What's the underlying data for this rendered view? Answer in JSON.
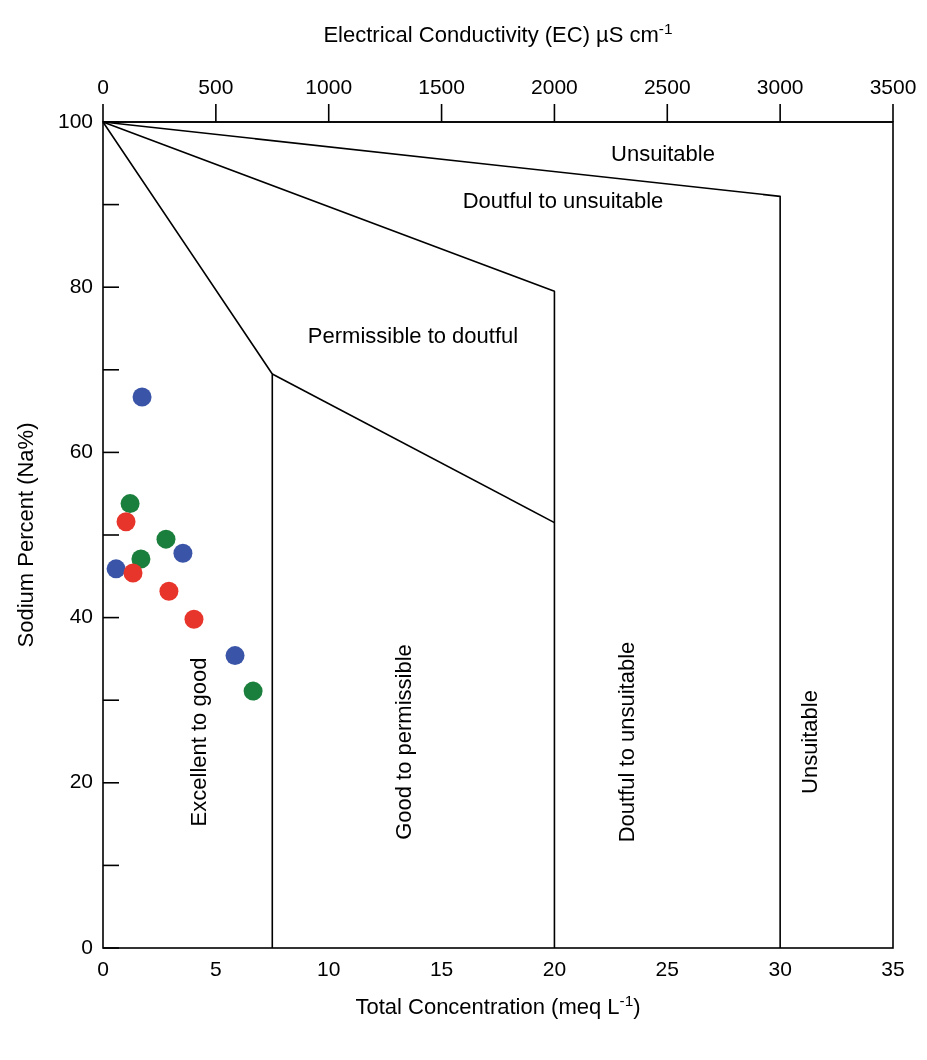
{
  "chart_data": {
    "type": "scatter",
    "xlabel": "Total Concentration (meq L$^{-1}$)",
    "ylabel": "Sodium Percent (Na%)",
    "x2label": "Electrical Conductivity (EC) µS cm$^{-1}$",
    "xlim": [
      0,
      35
    ],
    "xticks": [
      0,
      5,
      10,
      15,
      20,
      25,
      30,
      35
    ],
    "ylim": [
      0,
      100
    ],
    "yticks": [
      0,
      {
        "value": 10,
        "label": null
      },
      20,
      {
        "value": 30,
        "label": null
      },
      40,
      {
        "value": 50,
        "label": null
      },
      60,
      {
        "value": 70,
        "label": null
      },
      80,
      {
        "value": 90,
        "label": null
      },
      100
    ],
    "x2lim": [
      0,
      3500
    ],
    "x2ticks": [
      0,
      500,
      1000,
      1500,
      2000,
      2500,
      3000,
      3500
    ],
    "grid": false,
    "series": [
      {
        "color": "#3a55a8",
        "x": [
          1.73,
          0.58,
          3.54,
          5.85
        ],
        "values": [
          66.7,
          45.9,
          47.8,
          35.4
        ]
      },
      {
        "color": "#1a7f3c",
        "x": [
          1.2,
          1.68,
          2.79,
          6.65
        ],
        "values": [
          53.8,
          47.1,
          49.5,
          31.1
        ]
      },
      {
        "color": "#e8352b",
        "x": [
          1.02,
          1.33,
          2.92,
          4.03
        ],
        "values": [
          51.6,
          45.4,
          43.2,
          39.8
        ]
      },
      {
        "type": "line",
        "color": "#000000",
        "x": [
          0,
          7.5,
          7.5
        ],
        "values": [
          100,
          69.5,
          0
        ]
      },
      {
        "type": "line",
        "color": "#000000",
        "x": [
          0,
          20,
          20
        ],
        "values": [
          100,
          79.5,
          0
        ]
      },
      {
        "type": "line",
        "color": "#000000",
        "x": [
          0,
          30,
          30
        ],
        "values": [
          100,
          91,
          0
        ]
      },
      {
        "type": "line",
        "color": "#000000",
        "x": [
          7.5,
          20
        ],
        "values": [
          69.5,
          51.5
        ]
      }
    ],
    "annotations": [
      "Unsuitable",
      "Doutful to unsuitable",
      "Permissible to doutful",
      "Excellent to good",
      "Good to permissible",
      "Doutful to unsuitable",
      "Unsuitable"
    ]
  }
}
